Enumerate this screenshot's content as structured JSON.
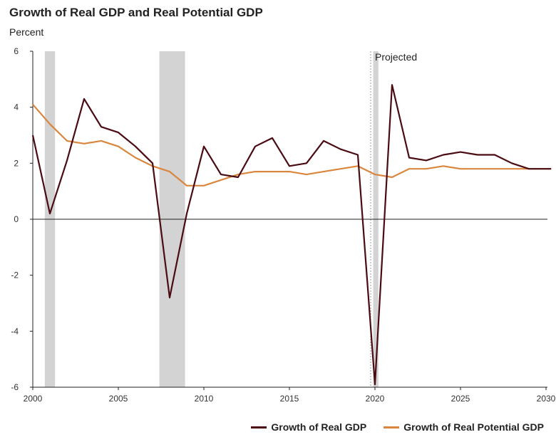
{
  "chart_data": {
    "type": "line",
    "title": "Growth of Real GDP and Real Potential GDP",
    "ylabel": "Percent",
    "xlim": [
      2000,
      2030.3
    ],
    "ylim": [
      -6,
      6
    ],
    "x_ticks": [
      "2000",
      "2005",
      "2010",
      "2015",
      "2020",
      "2025",
      "2030"
    ],
    "y_ticks": [
      "6",
      "4",
      "2",
      "0",
      "-2",
      "-4",
      "-6"
    ],
    "annotation": "Projected",
    "projected_from": 2019.75,
    "recessions": [
      [
        2000.7,
        2001.3
      ],
      [
        2007.4,
        2008.9
      ],
      [
        2019.9,
        2020.2
      ]
    ],
    "series": [
      {
        "name": "Growth of Real GDP",
        "color": "#4a0b12",
        "x": [
          2000,
          2001,
          2002,
          2003,
          2004,
          2005,
          2006,
          2007,
          2008,
          2009,
          2010,
          2011,
          2012,
          2013,
          2014,
          2015,
          2016,
          2017,
          2018,
          2019,
          2020,
          2021,
          2022,
          2023,
          2024,
          2025,
          2026,
          2027,
          2028,
          2029,
          2030,
          2030.3
        ],
        "values": [
          3.0,
          0.2,
          2.1,
          4.3,
          3.3,
          3.1,
          2.6,
          2.0,
          -2.8,
          0.2,
          2.6,
          1.6,
          1.5,
          2.6,
          2.9,
          1.9,
          2.0,
          2.8,
          2.5,
          2.3,
          -5.9,
          4.8,
          2.2,
          2.1,
          2.3,
          2.4,
          2.3,
          2.3,
          2.0,
          1.8,
          1.8,
          1.8
        ]
      },
      {
        "name": "Growth of Real Potential GDP",
        "color": "#d9863e",
        "x": [
          2000,
          2001,
          2002,
          2003,
          2004,
          2005,
          2006,
          2007,
          2008,
          2009,
          2010,
          2011,
          2012,
          2013,
          2014,
          2015,
          2016,
          2017,
          2018,
          2019,
          2020,
          2021,
          2022,
          2023,
          2024,
          2025,
          2026,
          2027,
          2028,
          2029,
          2030,
          2030.3
        ],
        "values": [
          4.1,
          3.4,
          2.8,
          2.7,
          2.8,
          2.6,
          2.2,
          1.9,
          1.7,
          1.2,
          1.2,
          1.4,
          1.6,
          1.7,
          1.7,
          1.7,
          1.6,
          1.7,
          1.8,
          1.9,
          1.6,
          1.5,
          1.8,
          1.8,
          1.9,
          1.8,
          1.8,
          1.8,
          1.8,
          1.8,
          1.8,
          1.8
        ]
      }
    ]
  }
}
